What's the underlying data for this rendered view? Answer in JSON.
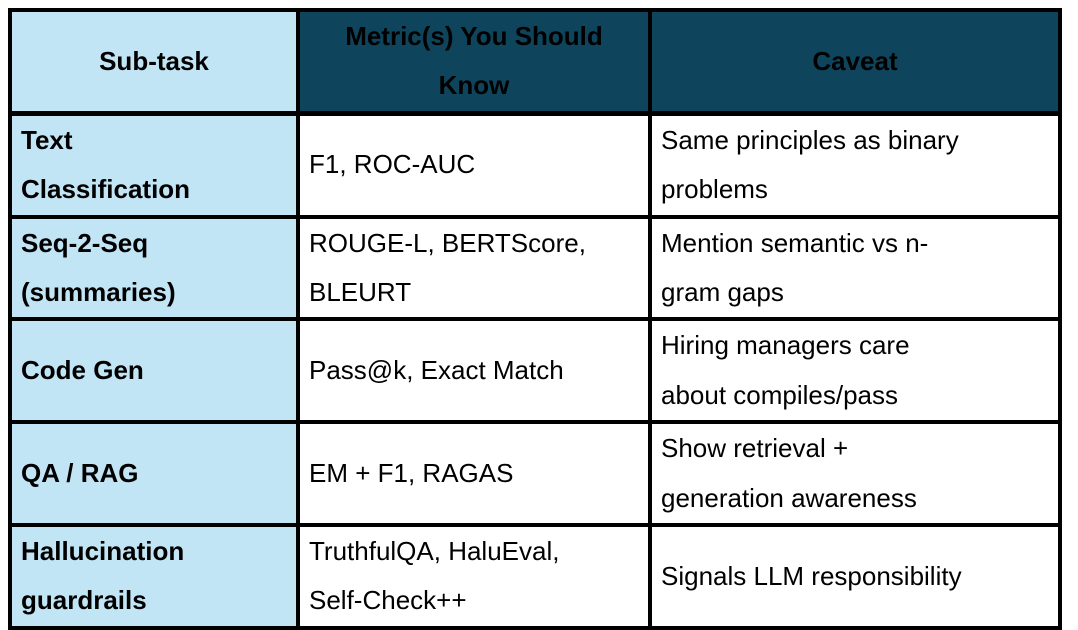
{
  "theme": {
    "light-blue": "#C1E5F5",
    "dark-navy": "#0F455C",
    "border-black": "#000000",
    "text-black": "#000000"
  },
  "table": {
    "headers": {
      "subtask": "Sub-task",
      "metrics": "Metric(s) You Should\nKnow",
      "caveat": "Caveat"
    },
    "rows": [
      {
        "subtask": "Text\nClassification",
        "metrics": "F1, ROC-AUC",
        "caveat": "Same principles as binary\nproblems"
      },
      {
        "subtask": "Seq-2-Seq\n(summaries)",
        "metrics": "ROUGE-L, BERTScore,\nBLEURT",
        "caveat": "Mention semantic vs n-\ngram gaps"
      },
      {
        "subtask": "Code Gen",
        "metrics": "Pass@k, Exact Match",
        "caveat": "Hiring managers care\nabout compiles/pass"
      },
      {
        "subtask": "QA / RAG",
        "metrics": "EM + F1, RAGAS",
        "caveat": "Show retrieval +\ngeneration awareness"
      },
      {
        "subtask": "Hallucination\nguardrails",
        "metrics": "TruthfulQA, HaluEval,\nSelf-Check++",
        "caveat": "Signals LLM responsibility"
      }
    ]
  }
}
